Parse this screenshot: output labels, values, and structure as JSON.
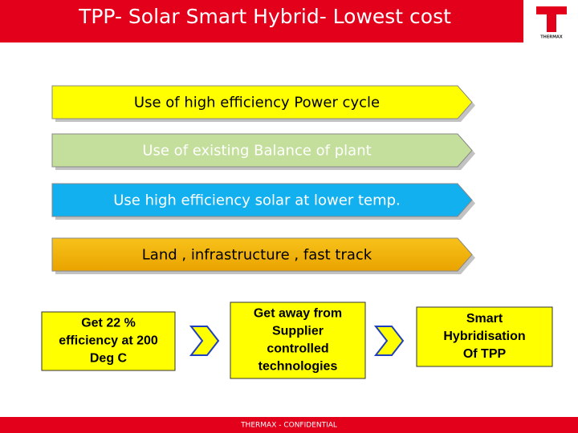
{
  "header": {
    "title": "TPP- Solar Smart Hybrid- Lowest cost",
    "logo": "THERMAX"
  },
  "steps": [
    "Use of high efficiency Power cycle",
    "Use of existing Balance of plant",
    "Use high efficiency solar at lower temp.",
    "Land , infrastructure , fast track"
  ],
  "boxes": [
    [
      "Get  22 %",
      "efficiency at 200",
      "Deg C"
    ],
    [
      "Get away from",
      "Supplier",
      "controlled",
      "technologies"
    ],
    [
      "Smart",
      "Hybridisation",
      "Of TPP"
    ]
  ],
  "footer": "THERMAX - CONFIDENTIAL"
}
